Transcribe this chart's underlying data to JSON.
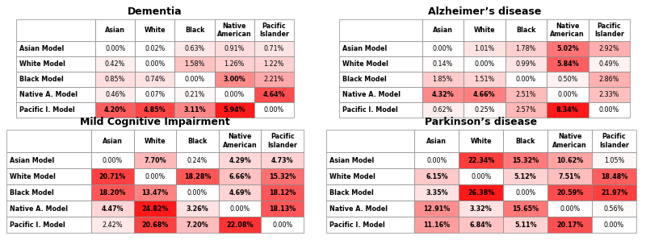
{
  "tables": [
    {
      "title": "Dementia",
      "rows": [
        "Asian Model",
        "White Model",
        "Black Model",
        "Native A. Model",
        "Pacific I. Model"
      ],
      "cols": [
        "Asian",
        "White",
        "Black",
        "Native\nAmerican",
        "Pacific\nIslander"
      ],
      "values": [
        [
          "0.00%",
          "0.02%",
          "0.63%",
          "0.91%",
          "0.71%"
        ],
        [
          "0.42%",
          "0.00%",
          "1.58%",
          "1.26%",
          "1.22%"
        ],
        [
          "0.85%",
          "0.74%",
          "0.00%",
          "3.00%",
          "2.21%"
        ],
        [
          "0.46%",
          "0.07%",
          "0.21%",
          "0.00%",
          "4.64%"
        ],
        [
          "4.20%",
          "4.85%",
          "3.11%",
          "5.94%",
          "0.00%"
        ]
      ],
      "numeric": [
        [
          0.0,
          0.02,
          0.63,
          0.91,
          0.71
        ],
        [
          0.42,
          0.0,
          1.58,
          1.26,
          1.22
        ],
        [
          0.85,
          0.74,
          0.0,
          3.0,
          2.21
        ],
        [
          0.46,
          0.07,
          0.21,
          0.0,
          4.64
        ],
        [
          4.2,
          4.85,
          3.11,
          5.94,
          0.0
        ]
      ]
    },
    {
      "title": "Alzheimer’s disease",
      "rows": [
        "Asian Model",
        "White Model",
        "Black Model",
        "Native A. Model",
        "Pacific I. Model"
      ],
      "cols": [
        "Asian",
        "White",
        "Black",
        "Native\nAmerican",
        "Pacific\nIslander"
      ],
      "values": [
        [
          "0.00%",
          "1.01%",
          "1.78%",
          "5.02%",
          "2.92%"
        ],
        [
          "0.14%",
          "0.00%",
          "0.99%",
          "5.84%",
          "0.49%"
        ],
        [
          "1.85%",
          "1.51%",
          "0.00%",
          "0.50%",
          "2.86%"
        ],
        [
          "4.32%",
          "4.66%",
          "2.51%",
          "0.00%",
          "2.33%"
        ],
        [
          "0.62%",
          "0.25%",
          "2.57%",
          "8.34%",
          "0.00%"
        ]
      ],
      "numeric": [
        [
          0.0,
          1.01,
          1.78,
          5.02,
          2.92
        ],
        [
          0.14,
          0.0,
          0.99,
          5.84,
          0.49
        ],
        [
          1.85,
          1.51,
          0.0,
          0.5,
          2.86
        ],
        [
          4.32,
          4.66,
          2.51,
          0.0,
          2.33
        ],
        [
          0.62,
          0.25,
          2.57,
          8.34,
          0.0
        ]
      ]
    },
    {
      "title": "Mild Cognitive Impairment",
      "rows": [
        "Asian Model",
        "White Model",
        "Black Model",
        "Native A. Model",
        "Pacific I. Model"
      ],
      "cols": [
        "Asian",
        "White",
        "Black",
        "Native\nAmerican",
        "Pacific\nIslander"
      ],
      "values": [
        [
          "0.00%",
          "7.70%",
          "0.24%",
          "4.29%",
          "4.73%"
        ],
        [
          "20.71%",
          "0.00%",
          "18.28%",
          "6.66%",
          "15.32%"
        ],
        [
          "18.20%",
          "13.47%",
          "0.00%",
          "4.69%",
          "18.12%"
        ],
        [
          "4.47%",
          "24.82%",
          "3.26%",
          "0.00%",
          "18.13%"
        ],
        [
          "2.42%",
          "20.68%",
          "7.20%",
          "22.08%",
          "0.00%"
        ]
      ],
      "numeric": [
        [
          0.0,
          7.7,
          0.24,
          4.29,
          4.73
        ],
        [
          20.71,
          0.0,
          18.28,
          6.66,
          15.32
        ],
        [
          18.2,
          13.47,
          0.0,
          4.69,
          18.12
        ],
        [
          4.47,
          24.82,
          3.26,
          0.0,
          18.13
        ],
        [
          2.42,
          20.68,
          7.2,
          22.08,
          0.0
        ]
      ]
    },
    {
      "title": "Parkinson’s disease",
      "rows": [
        "Asian Model",
        "White Model",
        "Black Model",
        "Native A. Model",
        "Pacific I. Model"
      ],
      "cols": [
        "Asian",
        "White",
        "Black",
        "Native\nAmerican",
        "Pacific\nIslander"
      ],
      "values": [
        [
          "0.00%",
          "22.34%",
          "15.32%",
          "10.62%",
          "1.05%"
        ],
        [
          "6.15%",
          "0.00%",
          "5.12%",
          "7.51%",
          "18.48%"
        ],
        [
          "3.35%",
          "26.38%",
          "0.00%",
          "20.59%",
          "21.97%"
        ],
        [
          "12.91%",
          "3.32%",
          "15.65%",
          "0.00%",
          "0.56%"
        ],
        [
          "11.16%",
          "6.84%",
          "5.11%",
          "20.17%",
          "0.00%"
        ]
      ],
      "numeric": [
        [
          0.0,
          22.34,
          15.32,
          10.62,
          1.05
        ],
        [
          6.15,
          0.0,
          5.12,
          7.51,
          18.48
        ],
        [
          3.35,
          26.38,
          0.0,
          20.59,
          21.97
        ],
        [
          12.91,
          3.32,
          15.65,
          0.0,
          0.56
        ],
        [
          11.16,
          6.84,
          5.11,
          20.17,
          0.0
        ]
      ]
    }
  ],
  "bg_color": "#ffffff",
  "title_fontsize": 9,
  "cell_fontsize": 5.8,
  "header_fontsize": 5.8,
  "row_fontsize": 5.8,
  "edge_color": "#888888",
  "edge_lw": 0.5,
  "bold_threshold": 3.0
}
